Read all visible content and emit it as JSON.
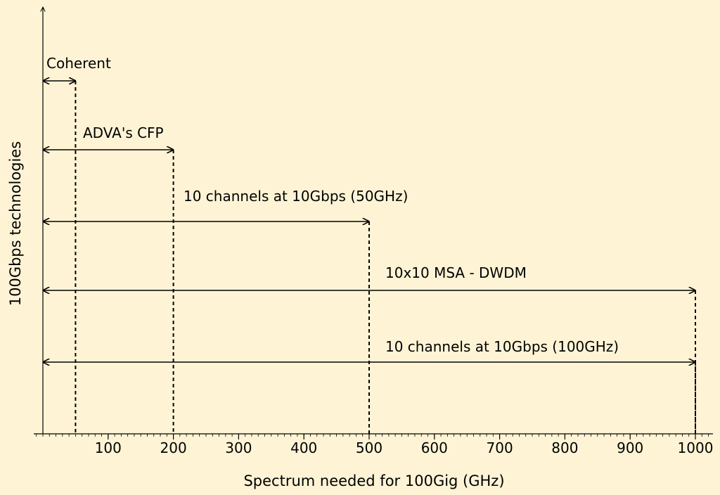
{
  "chart_data": {
    "type": "range-arrows",
    "xlabel": "Spectrum needed for 100Gig (GHz)",
    "ylabel": "100Gbps technologies",
    "xlim": [
      0,
      1000
    ],
    "xticks": [
      100,
      200,
      300,
      400,
      500,
      600,
      700,
      800,
      900,
      1000
    ],
    "series": [
      {
        "name": "Coherent",
        "start": 0,
        "end": 50
      },
      {
        "name": "ADVA's CFP",
        "start": 0,
        "end": 200
      },
      {
        "name": "10 channels at 10Gbps (50GHz)",
        "start": 0,
        "end": 500
      },
      {
        "name": "10x10 MSA - DWDM",
        "start": 0,
        "end": 1000
      },
      {
        "name": "10 channels at 10Gbps (100GHz)",
        "start": 0,
        "end": 1000
      }
    ],
    "grid": false,
    "colors": {
      "background": "#FEF4D5",
      "ink": "#000000"
    }
  }
}
